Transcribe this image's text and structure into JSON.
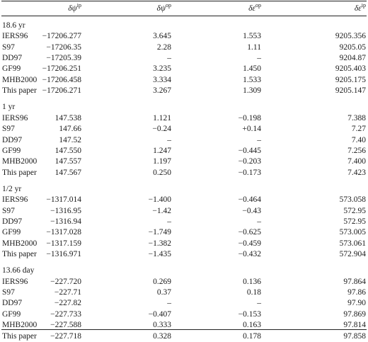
{
  "table": {
    "headers": [
      {
        "symbol": "δψ",
        "sup": "ip"
      },
      {
        "symbol": "δψ",
        "sup": "op"
      },
      {
        "symbol": "δε",
        "sup": "op"
      },
      {
        "symbol": "δε",
        "sup": "ip"
      }
    ],
    "sections": [
      {
        "title": "18.6 yr",
        "rows": [
          [
            "IERS96",
            "−17206.277",
            "3.645",
            "1.553",
            "9205.356"
          ],
          [
            "S97",
            "−17206.35",
            "2.28",
            "1.11",
            "9205.05"
          ],
          [
            "DD97",
            "−17205.39",
            "–",
            "–",
            "9204.87"
          ],
          [
            "GF99",
            "−17206.251",
            "3.235",
            "1.450",
            "9205.403"
          ],
          [
            "MHB2000",
            "−17206.458",
            "3.334",
            "1.533",
            "9205.175"
          ],
          [
            "This paper",
            "−17206.271",
            "3.267",
            "1.309",
            "9205.147"
          ]
        ]
      },
      {
        "title": "1 yr",
        "rows": [
          [
            "IERS96",
            "147.538",
            "1.121",
            "−0.198",
            "7.388"
          ],
          [
            "S97",
            "147.66",
            "−0.24",
            "+0.14",
            "7.27"
          ],
          [
            "DD97",
            "147.52",
            "–",
            "–",
            "7.40"
          ],
          [
            "GF99",
            "147.550",
            "1.247",
            "−0.445",
            "7.256"
          ],
          [
            "MHB2000",
            "147.557",
            "1.197",
            "−0.203",
            "7.400"
          ],
          [
            "This paper",
            "147.567",
            "0.250",
            "−0.173",
            "7.423"
          ]
        ]
      },
      {
        "title": "1/2 yr",
        "rows": [
          [
            "IERS96",
            "−1317.014",
            "−1.400",
            "−0.464",
            "573.058"
          ],
          [
            "S97",
            "−1316.95",
            "−1.42",
            "−0.43",
            "572.95"
          ],
          [
            "DD97",
            "−1316.94",
            "–",
            "–",
            "572.95"
          ],
          [
            "GF99",
            "−1317.028",
            "−1.749",
            "−0.625",
            "573.005"
          ],
          [
            "MHB2000",
            "−1317.159",
            "−1.382",
            "−0.459",
            "573.061"
          ],
          [
            "This paper",
            "−1316.971",
            "−1.435",
            "−0.432",
            "572.904"
          ]
        ]
      },
      {
        "title": "13.66 day",
        "rows": [
          [
            "IERS96",
            "−227.720",
            "0.269",
            "0.136",
            "97.864"
          ],
          [
            "S97",
            "−227.71",
            "0.37",
            "0.18",
            "97.86"
          ],
          [
            "DD97",
            "−227.82",
            "–",
            "–",
            "97.90"
          ],
          [
            "GF99",
            "−227.733",
            "−0.407",
            "−0.153",
            "97.869"
          ],
          [
            "MHB2000",
            "−227.588",
            "0.333",
            "0.163",
            "97.814"
          ],
          [
            "This paper",
            "−227.718",
            "0.328",
            "0.178",
            "97.858"
          ]
        ]
      }
    ]
  }
}
